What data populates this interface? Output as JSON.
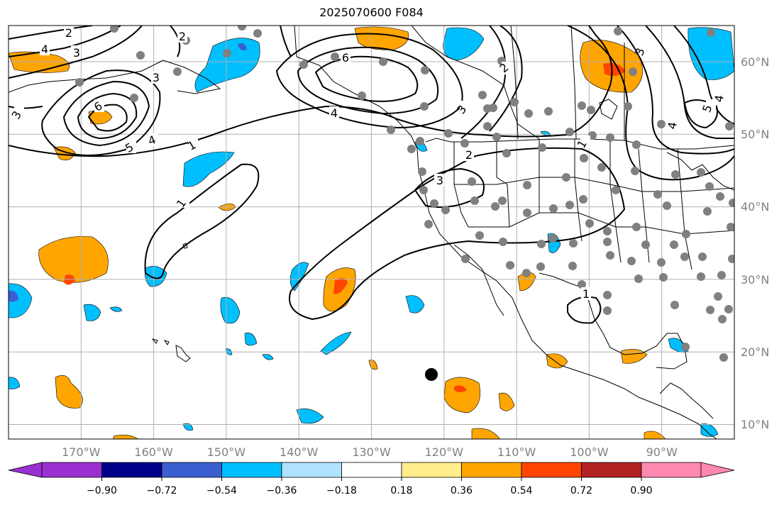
{
  "title": "2025070600 F084",
  "map": {
    "lon_range": [
      -180,
      -80
    ],
    "lat_range": [
      8,
      65
    ],
    "lon_ticks": [
      {
        "value": -170,
        "label": "170°W"
      },
      {
        "value": -160,
        "label": "160°W"
      },
      {
        "value": -150,
        "label": "150°W"
      },
      {
        "value": -140,
        "label": "140°W"
      },
      {
        "value": -130,
        "label": "130°W"
      },
      {
        "value": -120,
        "label": "120°W"
      },
      {
        "value": -110,
        "label": "110°W"
      },
      {
        "value": -100,
        "label": "100°W"
      },
      {
        "value": -90,
        "label": "90°W"
      }
    ],
    "lat_ticks": [
      {
        "value": 10,
        "label": "10°N"
      },
      {
        "value": 20,
        "label": "20°N"
      },
      {
        "value": 30,
        "label": "30°N"
      },
      {
        "value": 40,
        "label": "40°N"
      },
      {
        "value": 50,
        "label": "50°N"
      },
      {
        "value": 60,
        "label": "60°N"
      }
    ],
    "contour_labels": [
      "1",
      "2",
      "3",
      "4",
      "5",
      "6"
    ],
    "colors": {
      "gridline": "#b0b0b0",
      "station": "#808080",
      "marker": "#000000"
    }
  },
  "colorbar": {
    "tick_labels": [
      "−0.90",
      "−0.72",
      "−0.54",
      "−0.36",
      "−0.18",
      "0.18",
      "0.36",
      "0.54",
      "0.72",
      "0.90"
    ],
    "colors": [
      "#9b30d0",
      "#00008b",
      "#3a5fd0",
      "#00bfff",
      "#b0e2ff",
      "#ffffff",
      "#ffec8b",
      "#ffa500",
      "#ff4500",
      "#b22222",
      "#ff88b0"
    ]
  }
}
